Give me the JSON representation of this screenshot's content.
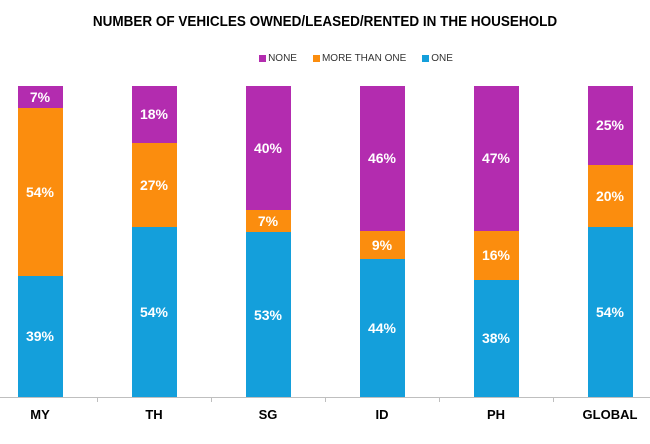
{
  "title": "NUMBER OF VEHICLES OWNED/LEASED/RENTED IN THE HOUSEHOLD",
  "colors": {
    "none": "#B32CAF",
    "more_than_one": "#FB8D0E",
    "one": "#149FDB",
    "axis": "#BFBFBF",
    "title_text": "#000000",
    "legend_text": "#333333",
    "value_label_text": "#FFFFFF"
  },
  "chart_data": {
    "type": "bar",
    "stacked": true,
    "percent_stacked": true,
    "categories": [
      "MY",
      "TH",
      "SG",
      "ID",
      "PH",
      "GLOBAL"
    ],
    "series": [
      {
        "name": "NONE",
        "color_key": "none",
        "values": [
          7,
          18,
          40,
          46,
          47,
          25
        ]
      },
      {
        "name": "MORE THAN ONE",
        "color_key": "more_than_one",
        "values": [
          54,
          27,
          7,
          9,
          16,
          20
        ]
      },
      {
        "name": "ONE",
        "color_key": "one",
        "values": [
          39,
          54,
          53,
          44,
          38,
          54
        ]
      }
    ],
    "value_suffix": "%",
    "title": "NUMBER OF VEHICLES OWNED/LEASED/RENTED IN THE HOUSEHOLD",
    "legend_position": "top",
    "grid": false,
    "xlabel": "",
    "ylabel": ""
  }
}
